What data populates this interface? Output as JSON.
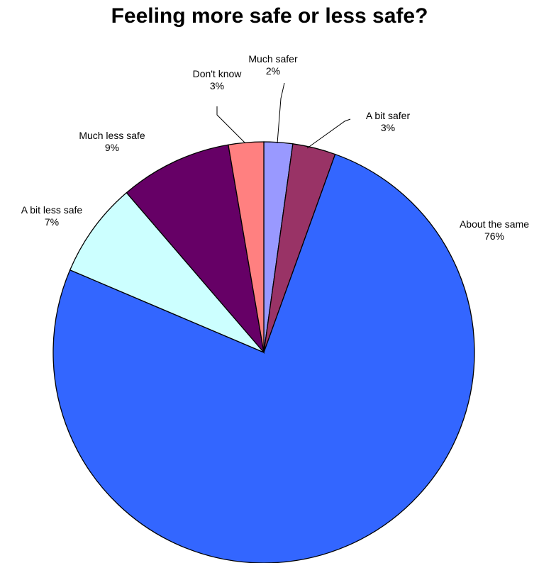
{
  "chart_data": {
    "type": "pie",
    "title": "Feeling more safe or less safe?",
    "slices": [
      {
        "label": "Much safer",
        "pct_label": "2%",
        "value": 2.2,
        "color": "#9999FF"
      },
      {
        "label": "A bit safer",
        "pct_label": "3%",
        "value": 3.3,
        "color": "#993366"
      },
      {
        "label": "About the same",
        "pct_label": "76%",
        "value": 75.9,
        "color": "#3366FF"
      },
      {
        "label": "A bit less safe",
        "pct_label": "7%",
        "value": 7.3,
        "color": "#CCFFFF"
      },
      {
        "label": "Much less safe",
        "pct_label": "9%",
        "value": 8.6,
        "color": "#660066"
      },
      {
        "label": "Don't know",
        "pct_label": "3%",
        "value": 2.7,
        "color": "#FF8080"
      }
    ]
  }
}
